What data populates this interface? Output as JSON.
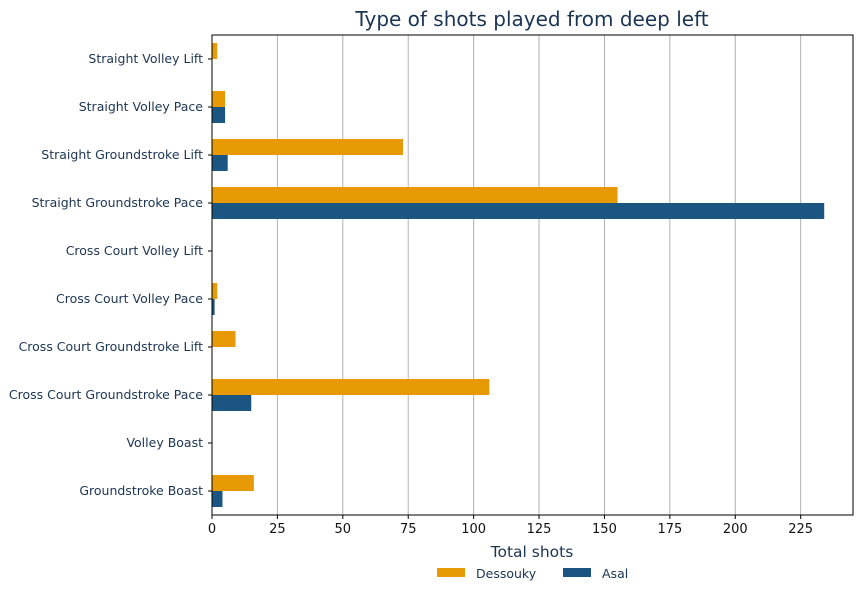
{
  "chart_data": {
    "type": "bar",
    "orientation": "horizontal",
    "title": "Type of shots played from deep left",
    "xlabel": "Total shots",
    "ylabel": "",
    "xlim": [
      0,
      245
    ],
    "xticks": [
      0,
      25,
      50,
      75,
      100,
      125,
      150,
      175,
      200,
      225
    ],
    "grid": "vertical",
    "legend_position": "bottom-center",
    "categories": [
      "Straight Volley Lift",
      "Straight Volley Pace",
      "Straight Groundstroke Lift",
      "Straight Groundstroke Pace",
      "Cross Court Volley Lift",
      "Cross Court Volley Pace",
      "Cross Court Groundstroke Lift",
      "Cross Court Groundstroke Pace",
      "Volley Boast",
      "Groundstroke Boast"
    ],
    "series": [
      {
        "name": "Dessouky",
        "color": "#e89a06",
        "values": [
          2,
          5,
          73,
          155,
          0,
          2,
          9,
          106,
          0,
          16
        ]
      },
      {
        "name": "Asal",
        "color": "#1b5581",
        "values": [
          0,
          5,
          6,
          234,
          0,
          1,
          0,
          15,
          0,
          4
        ]
      }
    ]
  }
}
